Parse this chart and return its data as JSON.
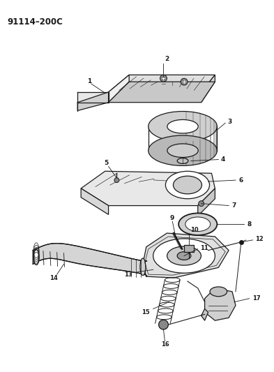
{
  "title": "91114–200C",
  "background_color": "#ffffff",
  "line_color": "#1a1a1a",
  "fig_width": 3.93,
  "fig_height": 5.33,
  "dpi": 100
}
